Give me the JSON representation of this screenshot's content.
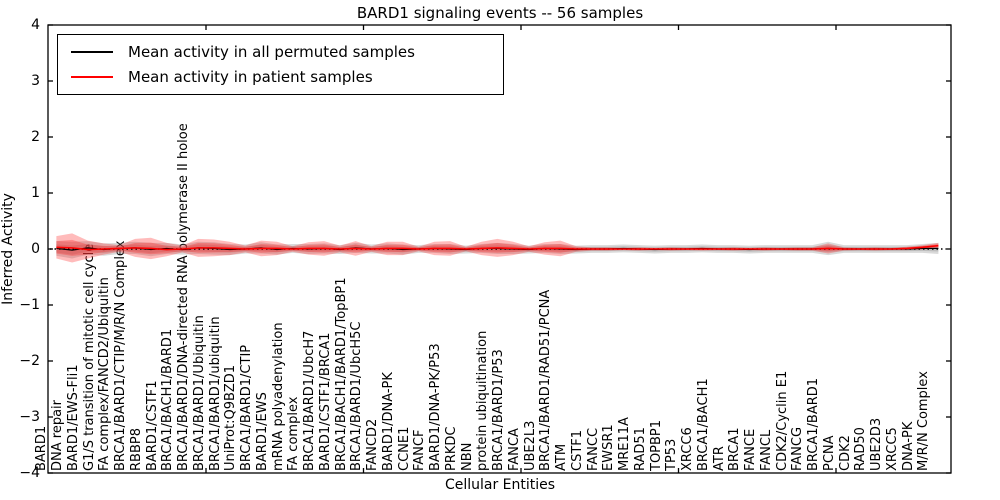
{
  "title": "BARD1 signaling events -- 56 samples",
  "legend": {
    "items": [
      {
        "label": "Mean activity in all permuted samples",
        "color": "#000000"
      },
      {
        "label": "Mean activity in patient samples",
        "color": "#ff0000"
      }
    ]
  },
  "axes": {
    "xlabel": "Cellular Entities",
    "ylabel": "Inferred Activity",
    "ytick_labels": [
      "4",
      "3",
      "2",
      "1",
      "0",
      "−1",
      "−2",
      "−3",
      "−4"
    ],
    "ytick_values": [
      4,
      3,
      2,
      1,
      0,
      -1,
      -2,
      -3,
      -4
    ]
  },
  "colors": {
    "patient": "#ff0000",
    "permuted": "#000000",
    "patient_band": "rgba(255,30,30,0.30)",
    "permuted_band": "rgba(120,120,120,0.28)"
  },
  "chart_data": {
    "type": "line",
    "title": "BARD1 signaling events -- 56 samples",
    "xlabel": "Cellular Entities",
    "ylabel": "Inferred Activity",
    "ylim": [
      -4,
      4
    ],
    "grid": false,
    "legend_position": "upper left",
    "categories": [
      "BARD1",
      "DNA repair",
      "BARD1/EWS-Fli1",
      "G1/S transition of mitotic cell cycle",
      "FA complex/FANCD2/Ubiquitin",
      "BRCA1/BARD1/CTIP/M/R/N Complex",
      "RBBP8",
      "BARD1/CSTF1",
      "BRCA1/BACH1/BARD1",
      "BRCA1/BARD1/DNA-directed RNA polymerase II holoe",
      "BRCA1/BARD1/Ubiquitin",
      "BRCA1/BARD1/ubiquitin",
      "UniProt:Q9BZD1",
      "BRCA1/BARD1/CTIP",
      "BARD1/EWS",
      "mRNA polyadenylation",
      "FA complex",
      "BRCA1/BARD1/UbcH7",
      "BARD1/CSTF1/BRCA1",
      "BRCA1/BACH1/BARD1/TopBP1",
      "BRCA1/BARD1/UbcH5C",
      "FANCD2",
      "BARD1/DNA-PK",
      "CCNE1",
      "FANCF",
      "BARD1/DNA-PK/P53",
      "PRKDC",
      "NBN",
      "protein ubiquitination",
      "BRCA1/BARD1/P53",
      "FANCA",
      "UBE2L3",
      "BRCA1/BARD1/RAD51/PCNA",
      "ATM",
      "CSTF1",
      "FANCC",
      "EWSR1",
      "MRE11A",
      "RAD51",
      "TOPBP1",
      "TP53",
      "XRCC6",
      "BRCA1/BACH1",
      "ATR",
      "BRCA1",
      "FANCE",
      "FANCL",
      "CDK2/Cyclin E1",
      "FANCG",
      "BRCA1/BARD1",
      "PCNA",
      "CDK2",
      "RAD50",
      "UBE2D3",
      "XRCC5",
      "DNA-PK",
      "M/R/N Complex"
    ],
    "series": [
      {
        "name": "Mean activity in all permuted samples",
        "color": "#000000",
        "style": "solid",
        "values": [
          0.01,
          -0.02,
          0.02,
          -0.01,
          0.01,
          0.02,
          -0.01,
          0.01,
          -0.01,
          0.02,
          0.01,
          -0.01,
          0.0,
          0.02,
          -0.01,
          0.01,
          0.0,
          0.01,
          -0.01,
          0.02,
          0.0,
          0.01,
          -0.01,
          0.0,
          0.01,
          0.0,
          -0.01,
          0.01,
          0.01,
          0.0,
          -0.01,
          0.01,
          0.0,
          -0.01,
          0.0,
          0.0,
          0.01,
          0.0,
          -0.01,
          0.0,
          0.0,
          0.01,
          0.0,
          0.0,
          -0.01,
          0.0,
          0.0,
          0.0,
          0.0,
          0.01,
          0.0,
          0.0,
          0.0,
          0.0,
          0.0,
          0.01,
          0.01
        ]
      },
      {
        "name": "Mean activity in patient samples",
        "color": "#ff0000",
        "style": "solid",
        "values": [
          0.03,
          0.02,
          -0.01,
          0.0,
          0.01,
          0.02,
          0.01,
          -0.01,
          0.0,
          0.02,
          0.02,
          0.01,
          0.0,
          0.01,
          0.01,
          0.0,
          0.01,
          0.01,
          0.0,
          0.01,
          0.0,
          0.01,
          0.01,
          0.0,
          0.01,
          0.01,
          0.0,
          0.01,
          0.02,
          0.01,
          0.0,
          0.01,
          0.01,
          0.0,
          0.0,
          0.0,
          0.0,
          0.0,
          0.0,
          0.0,
          0.0,
          0.0,
          0.0,
          0.0,
          0.0,
          0.0,
          0.0,
          0.0,
          0.0,
          0.01,
          0.0,
          0.0,
          0.0,
          0.0,
          0.01,
          0.03,
          0.06
        ]
      },
      {
        "name": "zero-baseline",
        "color": "#000000",
        "style": "dotted",
        "constant": 0
      }
    ],
    "bands": [
      {
        "name": "permuted-std-band",
        "center_series": 0,
        "color": "rgba(120,120,120,0.28)",
        "half_widths": [
          0.13,
          0.15,
          0.12,
          0.11,
          0.1,
          0.11,
          0.12,
          0.1,
          0.09,
          0.11,
          0.11,
          0.1,
          0.08,
          0.1,
          0.09,
          0.08,
          0.09,
          0.09,
          0.08,
          0.09,
          0.08,
          0.09,
          0.09,
          0.07,
          0.08,
          0.09,
          0.07,
          0.08,
          0.1,
          0.09,
          0.07,
          0.08,
          0.09,
          0.07,
          0.07,
          0.07,
          0.07,
          0.07,
          0.07,
          0.07,
          0.07,
          0.07,
          0.07,
          0.07,
          0.07,
          0.07,
          0.07,
          0.07,
          0.07,
          0.12,
          0.07,
          0.07,
          0.07,
          0.07,
          0.07,
          0.08,
          0.1
        ]
      },
      {
        "name": "patient-std-band",
        "center_series": 1,
        "color": "rgba(255,30,30,0.30)",
        "half_widths": [
          0.2,
          0.26,
          0.16,
          0.1,
          0.06,
          0.16,
          0.19,
          0.12,
          0.06,
          0.16,
          0.15,
          0.12,
          0.06,
          0.14,
          0.12,
          0.05,
          0.11,
          0.13,
          0.06,
          0.13,
          0.05,
          0.12,
          0.12,
          0.04,
          0.12,
          0.13,
          0.04,
          0.12,
          0.16,
          0.12,
          0.05,
          0.11,
          0.14,
          0.05,
          0.03,
          0.03,
          0.02,
          0.03,
          0.02,
          0.03,
          0.02,
          0.03,
          0.02,
          0.03,
          0.02,
          0.03,
          0.02,
          0.03,
          0.03,
          0.09,
          0.03,
          0.02,
          0.03,
          0.02,
          0.03,
          0.04,
          0.05
        ]
      }
    ]
  }
}
